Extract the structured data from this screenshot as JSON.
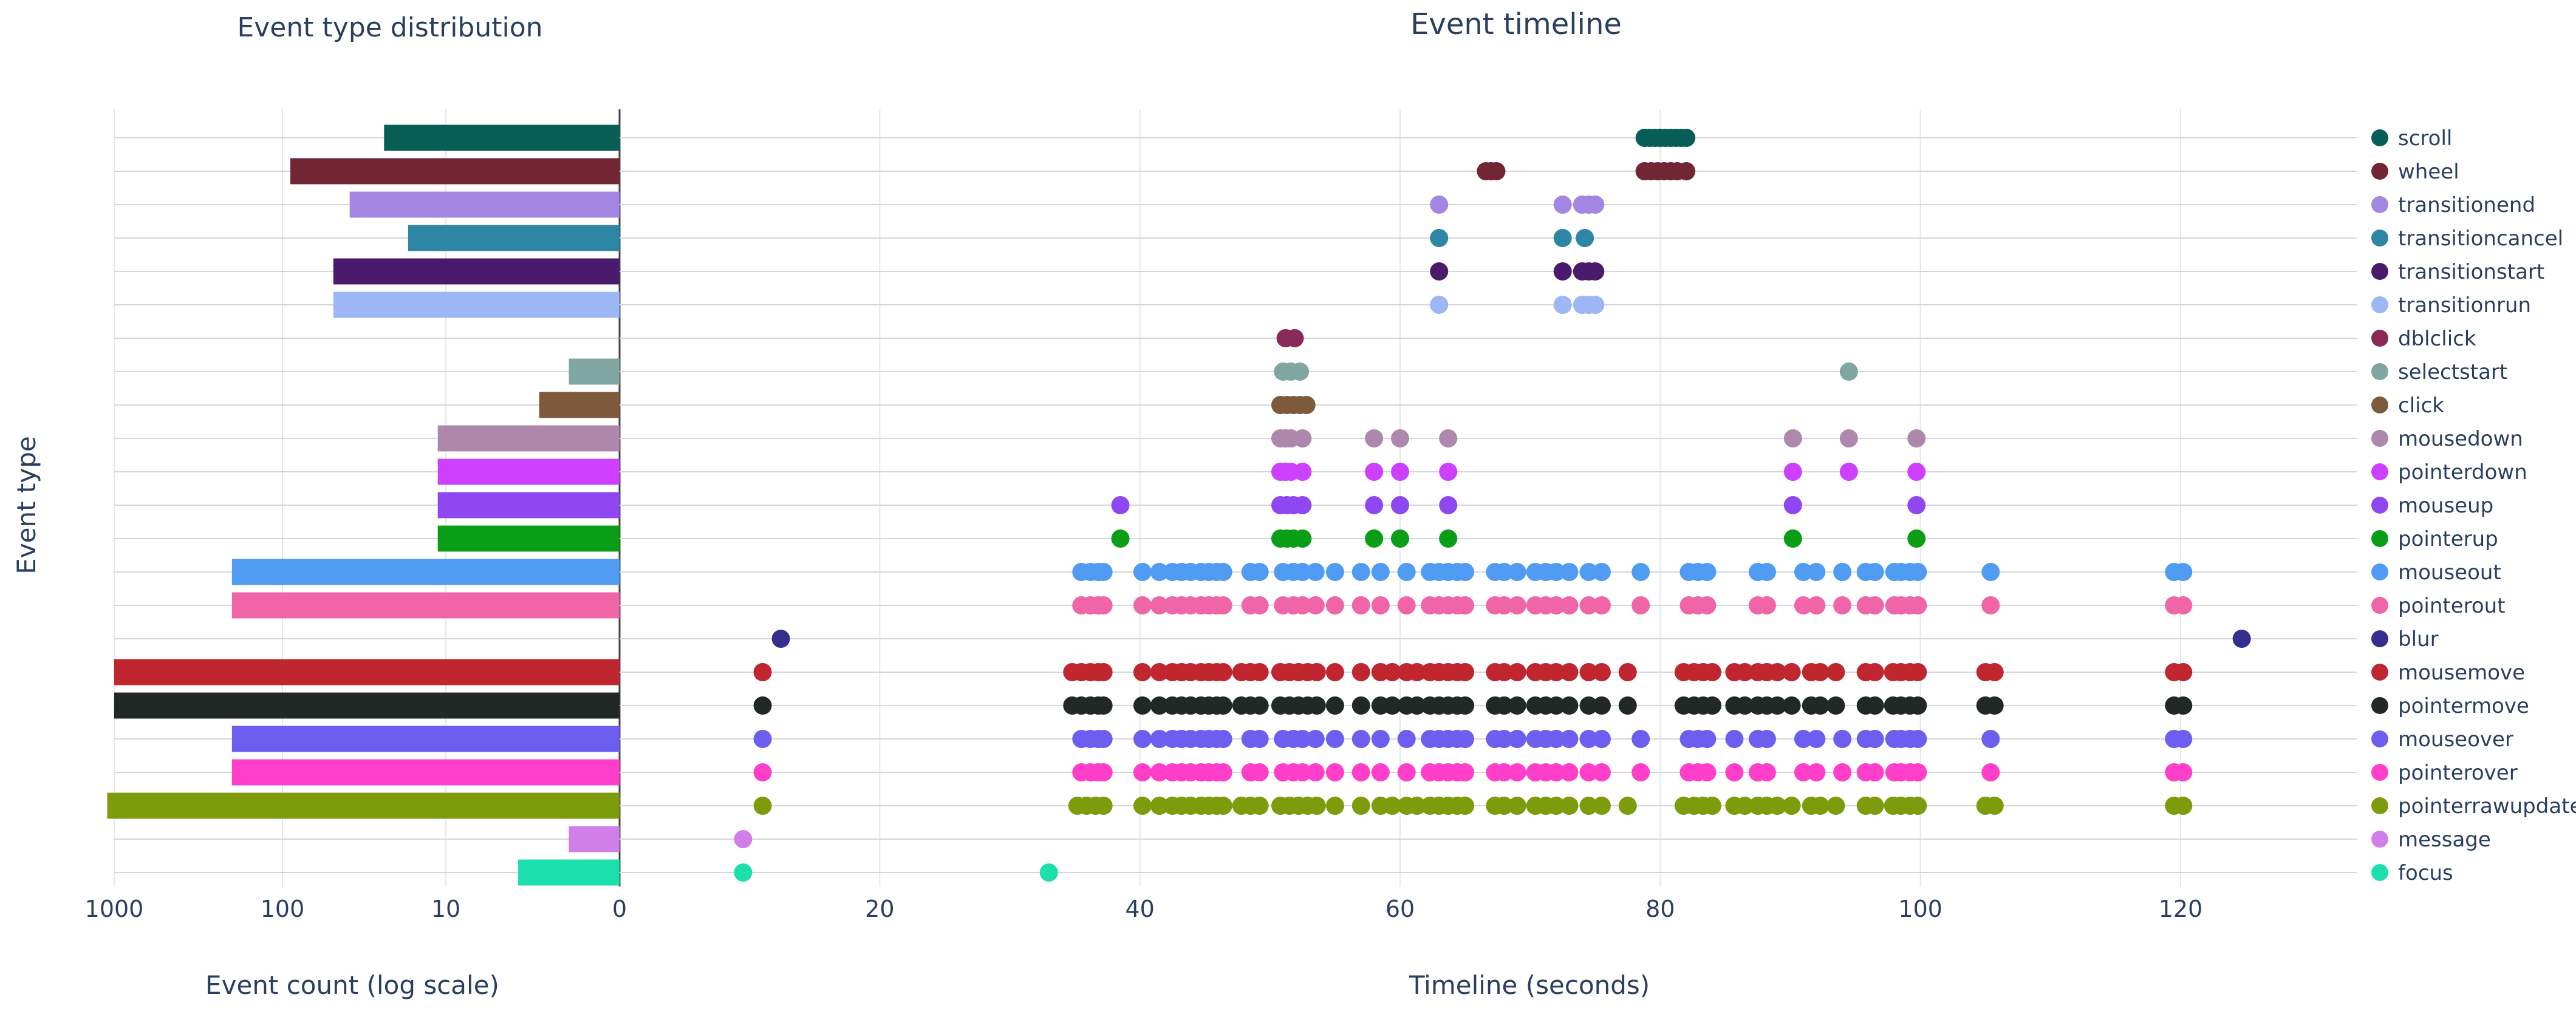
{
  "chart_data": [
    {
      "type": "bar",
      "orientation": "horizontal",
      "title": "Event type distribution",
      "xlabel": "Event count (log scale)",
      "ylabel": "Event type",
      "x_scale": "log",
      "x_reversed": true,
      "x_ticks": [
        "1000",
        "100",
        "10",
        "0"
      ],
      "grid": true,
      "categories": [
        "focus",
        "message",
        "pointerrawupdate",
        "pointerover",
        "mouseover",
        "pointermove",
        "mousemove",
        "blur",
        "pointerout",
        "mouseout",
        "pointerup",
        "mouseup",
        "pointerdown",
        "mousedown",
        "click",
        "selectstart",
        "dblclick",
        "transitionrun",
        "transitionstart",
        "transitioncancel",
        "transitionend",
        "wheel",
        "scroll"
      ],
      "values": [
        4,
        2,
        1100,
        200,
        200,
        1000,
        1000,
        1,
        200,
        200,
        12,
        12,
        12,
        12,
        3,
        2,
        1,
        50,
        50,
        18,
        40,
        90,
        25
      ],
      "colors": [
        "#1ce0ac",
        "#d17fe8",
        "#7d9c0c",
        "#ff3fc9",
        "#6e5ef0",
        "#222826",
        "#bf2630",
        "#342f8c",
        "#f064a8",
        "#519cf3",
        "#0a9e16",
        "#8f47f2",
        "#cd40ff",
        "#ad88ac",
        "#7d5a3c",
        "#80a6a2",
        "#882958",
        "#9cb6f6",
        "#4a1b6c",
        "#2e86a5",
        "#a386e2",
        "#722634",
        "#075e57"
      ]
    },
    {
      "type": "scatter",
      "title": "Event timeline",
      "xlabel": "Timeline (seconds)",
      "x_ticks": [
        "0",
        "20",
        "40",
        "60",
        "80",
        "100",
        "120"
      ],
      "xlim": [
        0,
        133
      ],
      "grid": true,
      "legend_position": "right",
      "series": [
        {
          "name": "scroll",
          "color": "#075e57",
          "x": [
            78.8,
            79.2,
            79.6,
            80,
            80.4,
            80.8,
            81.2,
            81.6,
            82
          ]
        },
        {
          "name": "wheel",
          "color": "#722634",
          "x": [
            66.6,
            67,
            67.4,
            78.8,
            79.3,
            79.8,
            80.3,
            80.8,
            81.3,
            82
          ]
        },
        {
          "name": "transitionend",
          "color": "#a386e2",
          "x": [
            63,
            72.5,
            74,
            74.5,
            75
          ]
        },
        {
          "name": "transitioncancel",
          "color": "#2e86a5",
          "x": [
            63,
            72.5,
            74.2
          ]
        },
        {
          "name": "transitionstart",
          "color": "#4a1b6c",
          "x": [
            63,
            72.5,
            74,
            74.5,
            75
          ]
        },
        {
          "name": "transitionrun",
          "color": "#9cb6f6",
          "x": [
            63,
            72.5,
            74,
            74.5,
            75
          ]
        },
        {
          "name": "dblclick",
          "color": "#882958",
          "x": [
            51.2,
            51.9
          ]
        },
        {
          "name": "selectstart",
          "color": "#80a6a2",
          "x": [
            51,
            51.6,
            52.3,
            94.5
          ]
        },
        {
          "name": "click",
          "color": "#7d5a3c",
          "x": [
            50.8,
            51.3,
            51.8,
            52.3,
            52.8
          ]
        },
        {
          "name": "mousedown",
          "color": "#ad88ac",
          "x": [
            50.8,
            51.2,
            51.6,
            52.5,
            58,
            60,
            63.7,
            90.2,
            94.5,
            99.7
          ]
        },
        {
          "name": "pointerdown",
          "color": "#cd40ff",
          "x": [
            50.8,
            51.2,
            51.6,
            52.5,
            58,
            60,
            63.7,
            90.2,
            94.5,
            99.7
          ]
        },
        {
          "name": "mouseup",
          "color": "#8f47f2",
          "x": [
            38.5,
            50.8,
            51.3,
            51.8,
            52.5,
            58,
            60,
            63.7,
            90.2,
            99.7
          ]
        },
        {
          "name": "pointerup",
          "color": "#0a9e16",
          "x": [
            38.5,
            50.8,
            51.3,
            51.8,
            52.5,
            58,
            60,
            63.7,
            90.2,
            99.7
          ]
        },
        {
          "name": "mouseout",
          "color": "#519cf3",
          "x": [
            35.5,
            36.2,
            36.8,
            37.2,
            40.2,
            41.5,
            42.5,
            43.2,
            43.9,
            44.7,
            45.3,
            45.9,
            46.4,
            48.5,
            49.2,
            51,
            51.8,
            52.5,
            53.5,
            55,
            57,
            58.5,
            60.5,
            62.3,
            63,
            63.7,
            64.4,
            65,
            67.3,
            68,
            69,
            70.4,
            71.2,
            72,
            73,
            74.5,
            75.5,
            78.5,
            82.2,
            82.9,
            83.6,
            87.5,
            88.2,
            91,
            92,
            94,
            95.8,
            96.5,
            98,
            98.5,
            99.2,
            99.8,
            105.4,
            119.5,
            120.2
          ]
        },
        {
          "name": "pointerout",
          "color": "#f064a8",
          "x": [
            35.5,
            36.2,
            36.8,
            37.2,
            40.2,
            41.5,
            42.5,
            43.2,
            43.9,
            44.7,
            45.3,
            45.9,
            46.4,
            48.5,
            49.2,
            51,
            51.8,
            52.5,
            53.5,
            55,
            57,
            58.5,
            60.5,
            62.3,
            63,
            63.7,
            64.4,
            65,
            67.3,
            68,
            69,
            70.4,
            71.2,
            72,
            73,
            74.5,
            75.5,
            78.5,
            82.2,
            82.9,
            83.6,
            87.5,
            88.2,
            91,
            92,
            94,
            95.8,
            96.5,
            98,
            98.5,
            99.2,
            99.8,
            105.4,
            119.5,
            120.2
          ]
        },
        {
          "name": "blur",
          "color": "#342f8c",
          "x": [
            12.4,
            124.7
          ]
        },
        {
          "name": "mousemove",
          "color": "#bf2630",
          "x": [
            11,
            34.8,
            35.5,
            36.2,
            36.8,
            37.2,
            40.2,
            41.5,
            42.5,
            43.2,
            43.9,
            44.7,
            45.3,
            45.9,
            46.4,
            47.8,
            48.5,
            49.2,
            50.8,
            51.5,
            52.2,
            52.9,
            53.6,
            55,
            57,
            58.5,
            59.4,
            60.5,
            61.3,
            62.3,
            63,
            63.7,
            64.4,
            65,
            67.3,
            68,
            69,
            70.4,
            71.2,
            72,
            73,
            74.5,
            75.5,
            77.5,
            81.8,
            82.6,
            83.3,
            84,
            85.7,
            86.5,
            87.5,
            88.2,
            89,
            90.1,
            91.6,
            92.3,
            93.5,
            95.8,
            96.5,
            97.9,
            98.5,
            99.2,
            99.8,
            105,
            105.7,
            119.5,
            120.2
          ]
        },
        {
          "name": "pointermove",
          "color": "#222826",
          "x": [
            11,
            34.8,
            35.5,
            36.2,
            36.8,
            37.2,
            40.2,
            41.5,
            42.5,
            43.2,
            43.9,
            44.7,
            45.3,
            45.9,
            46.4,
            47.8,
            48.5,
            49.2,
            50.8,
            51.5,
            52.2,
            52.9,
            53.6,
            55,
            57,
            58.5,
            59.4,
            60.5,
            61.3,
            62.3,
            63,
            63.7,
            64.4,
            65,
            67.3,
            68,
            69,
            70.4,
            71.2,
            72,
            73,
            74.5,
            75.5,
            77.5,
            81.8,
            82.6,
            83.3,
            84,
            85.7,
            86.5,
            87.5,
            88.2,
            89,
            90.1,
            91.6,
            92.3,
            93.5,
            95.8,
            96.5,
            97.9,
            98.5,
            99.2,
            99.8,
            105,
            105.7,
            119.5,
            120.2
          ]
        },
        {
          "name": "mouseover",
          "color": "#6e5ef0",
          "x": [
            11,
            35.5,
            36.2,
            36.8,
            37.2,
            40.2,
            41.5,
            42.5,
            43.2,
            43.9,
            44.7,
            45.3,
            45.9,
            46.4,
            48.5,
            49.2,
            51,
            51.8,
            52.5,
            53.5,
            55,
            57,
            58.5,
            60.5,
            62.3,
            63,
            63.7,
            64.4,
            65,
            67.3,
            68,
            69,
            70.4,
            71.2,
            72,
            73,
            74.5,
            75.5,
            78.5,
            82.2,
            82.9,
            83.6,
            85.7,
            87.5,
            88.2,
            91,
            92,
            94,
            95.8,
            96.5,
            98,
            98.5,
            99.2,
            99.8,
            105.4,
            119.5,
            120.2
          ]
        },
        {
          "name": "pointerover",
          "color": "#ff3fc9",
          "x": [
            11,
            35.5,
            36.2,
            36.8,
            37.2,
            40.2,
            41.5,
            42.5,
            43.2,
            43.9,
            44.7,
            45.3,
            45.9,
            46.4,
            48.5,
            49.2,
            51,
            51.8,
            52.5,
            53.5,
            55,
            57,
            58.5,
            60.5,
            62.3,
            63,
            63.7,
            64.4,
            65,
            67.3,
            68,
            69,
            70.4,
            71.2,
            72,
            73,
            74.5,
            75.5,
            78.5,
            82.2,
            82.9,
            83.6,
            85.7,
            87.5,
            88.2,
            91,
            92,
            94,
            95.8,
            96.5,
            98,
            98.5,
            99.2,
            99.8,
            105.4,
            119.5,
            120.2
          ]
        },
        {
          "name": "pointerrawupdate",
          "color": "#7d9c0c",
          "x": [
            11,
            35.2,
            35.9,
            36.6,
            37.2,
            40.2,
            41.5,
            42.5,
            43.2,
            43.9,
            44.7,
            45.3,
            45.9,
            46.4,
            47.8,
            48.5,
            49.2,
            50.8,
            51.5,
            52.2,
            52.9,
            53.6,
            55,
            57,
            58.5,
            59.4,
            60.5,
            61.3,
            62.3,
            63,
            63.7,
            64.4,
            65,
            67.3,
            68,
            69,
            70.4,
            71.2,
            72,
            73,
            74.5,
            75.5,
            77.5,
            81.8,
            82.6,
            83.3,
            84,
            85.7,
            86.5,
            87.5,
            88.2,
            89,
            90.1,
            91.6,
            92.3,
            93.5,
            95.8,
            96.5,
            97.9,
            98.5,
            99.2,
            99.8,
            105,
            105.7,
            119.5,
            120.2
          ]
        },
        {
          "name": "message",
          "color": "#d17fe8",
          "x": [
            9.5
          ]
        },
        {
          "name": "focus",
          "color": "#1ce0ac",
          "x": [
            9.5,
            33
          ]
        }
      ]
    }
  ]
}
